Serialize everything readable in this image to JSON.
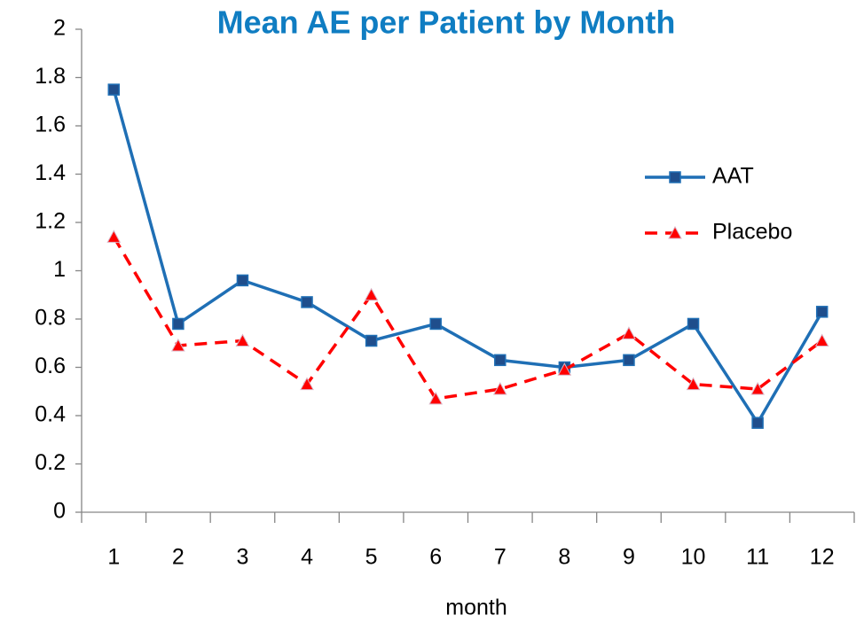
{
  "chart_data": {
    "type": "line",
    "title": "Mean AE per Patient by Month",
    "title_color": "#0f7dc2",
    "x_label": "month",
    "categories": [
      "1",
      "2",
      "3",
      "4",
      "5",
      "6",
      "7",
      "8",
      "9",
      "10",
      "11",
      "12"
    ],
    "series": [
      {
        "name": "AAT",
        "color": "#1f6fb5",
        "marker": "square",
        "marker_color": "#1f4e8c",
        "dashed": false,
        "values": [
          1.75,
          0.78,
          0.96,
          0.87,
          0.71,
          0.78,
          0.63,
          0.6,
          0.63,
          0.78,
          0.37,
          0.83
        ]
      },
      {
        "name": "Placebo",
        "color": "#ff0000",
        "marker": "triangle",
        "marker_color": "#ff0000",
        "dashed": true,
        "values": [
          1.14,
          0.69,
          0.71,
          0.53,
          0.9,
          0.47,
          0.51,
          0.59,
          0.74,
          0.53,
          0.51,
          0.71
        ]
      }
    ],
    "ylim": [
      0,
      2
    ],
    "yticks": [
      0,
      0.2,
      0.4,
      0.6,
      0.8,
      1,
      1.2,
      1.4,
      1.6,
      1.8,
      2
    ],
    "grid": false,
    "legend": "right"
  }
}
